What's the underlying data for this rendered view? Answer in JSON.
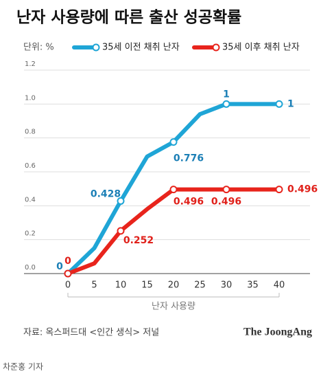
{
  "chart_data": {
    "type": "line",
    "title": "난자 사용량에 따른 출산 성공확률",
    "unit_label": "단위: %",
    "xlabel": "난자 사용량",
    "source": "자료: 옥스퍼드대 <인간 생식> 저널",
    "logo": "The JoongAng",
    "credit": "차준홍 기자",
    "x": [
      0,
      5,
      10,
      15,
      20,
      25,
      30,
      35,
      40
    ],
    "series": [
      {
        "name": "35세 이전 채취 난자",
        "color": "#1fa5d6",
        "label_color": "#1b7fb6",
        "values": [
          0,
          0.15,
          0.428,
          0.69,
          0.776,
          0.94,
          1,
          1,
          1
        ],
        "value_labels": [
          "0",
          null,
          "0.428",
          null,
          "0.776",
          null,
          "1",
          null,
          "1"
        ]
      },
      {
        "name": "35세 이후 채취 난자",
        "color": "#e8241c",
        "label_color": "#e0201a",
        "values": [
          0,
          0.06,
          0.252,
          0.38,
          0.496,
          0.496,
          0.496,
          0.496,
          0.496
        ],
        "value_labels": [
          "0",
          null,
          "0.252",
          null,
          "0.496",
          null,
          "0.496",
          null,
          "0.496"
        ]
      }
    ],
    "xlim": [
      0,
      40
    ],
    "xticks": [
      0,
      5,
      10,
      15,
      20,
      25,
      30,
      35,
      40
    ],
    "ylim": [
      0,
      1.2
    ],
    "yticks": [
      {
        "value": 0,
        "label": "0.0"
      },
      0.2,
      0.4,
      0.6,
      0.8,
      {
        "value": 1,
        "label": "1.0"
      },
      1.2
    ],
    "grid": true
  }
}
